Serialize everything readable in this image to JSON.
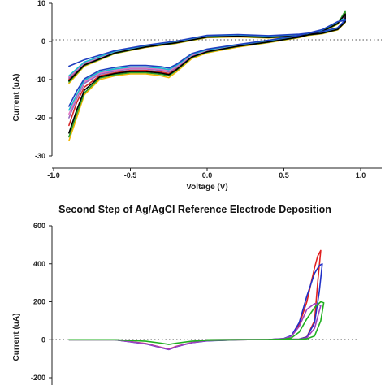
{
  "chart_data": [
    {
      "type": "line",
      "title": "",
      "xlabel": "Voltage (V)",
      "ylabel": "Current (uA)",
      "xlim": [
        -1.0,
        1.0
      ],
      "ylim": [
        -30,
        10
      ],
      "xticks": [
        "-1.0",
        "-0.5",
        "0.0",
        "0.5",
        "1.0"
      ],
      "yticks": [
        "10",
        "0",
        "-10",
        "-20",
        "-30"
      ],
      "zero_line": "dotted",
      "grid": false,
      "legend": "none",
      "series": [
        {
          "color": "#f2b705",
          "x": [
            -0.9,
            -0.85,
            -0.8,
            -0.7,
            -0.6,
            -0.5,
            -0.4,
            -0.3,
            -0.25,
            -0.2,
            -0.1,
            0.0,
            0.2,
            0.4,
            0.6,
            0.75,
            0.85,
            0.9,
            0.9,
            0.85,
            0.75,
            0.6,
            0.4,
            0.2,
            0.0,
            -0.2,
            -0.4,
            -0.6,
            -0.8,
            -0.9
          ],
          "y": [
            -26,
            -20,
            -14,
            -10,
            -9,
            -8.5,
            -8.5,
            -9,
            -9.5,
            -8,
            -4.5,
            -3,
            -1.5,
            -0.3,
            1,
            2.5,
            4.5,
            7.5,
            5,
            3,
            2,
            1.3,
            0.9,
            1.2,
            1,
            -0.5,
            -1.6,
            -3.2,
            -6.5,
            -11
          ]
        },
        {
          "color": "#2ca02c",
          "x": [
            -0.9,
            -0.85,
            -0.8,
            -0.7,
            -0.6,
            -0.5,
            -0.4,
            -0.3,
            -0.25,
            -0.2,
            -0.1,
            0.0,
            0.2,
            0.4,
            0.6,
            0.75,
            0.85,
            0.9,
            0.9,
            0.85,
            0.75,
            0.6,
            0.4,
            0.2,
            0.0,
            -0.2,
            -0.4,
            -0.6,
            -0.8,
            -0.9
          ],
          "y": [
            -25,
            -19,
            -13.5,
            -9.6,
            -8.7,
            -8.2,
            -8.2,
            -8.6,
            -9,
            -7.6,
            -4.2,
            -2.8,
            -1.3,
            -0.2,
            1.1,
            2.6,
            4.6,
            8,
            5.1,
            3.1,
            2.1,
            1.4,
            1,
            1.3,
            1.1,
            -0.4,
            -1.5,
            -3.1,
            -6.3,
            -10.6
          ]
        },
        {
          "color": "#d62728",
          "x": [
            -0.9,
            -0.85,
            -0.8,
            -0.7,
            -0.6,
            -0.5,
            -0.4,
            -0.3,
            -0.25,
            -0.2,
            -0.1,
            0.0,
            0.2,
            0.4,
            0.6,
            0.75,
            0.85,
            0.9,
            0.9,
            0.85,
            0.75,
            0.6,
            0.4,
            0.2,
            0.0,
            -0.2,
            -0.4,
            -0.6,
            -0.8,
            -0.9
          ],
          "y": [
            -22,
            -16,
            -12,
            -9,
            -8.2,
            -7.6,
            -7.6,
            -8,
            -8.4,
            -7.2,
            -4,
            -2.6,
            -1.2,
            -0.1,
            1.2,
            2.7,
            4.8,
            7,
            5.2,
            3.2,
            2.2,
            1.5,
            1.1,
            1.4,
            1.2,
            -0.3,
            -1.4,
            -2.9,
            -6,
            -10
          ]
        },
        {
          "color": "#9467bd",
          "x": [
            -0.9,
            -0.85,
            -0.8,
            -0.7,
            -0.6,
            -0.5,
            -0.4,
            -0.3,
            -0.25,
            -0.2,
            -0.1,
            0.0,
            0.2,
            0.4,
            0.6,
            0.75,
            0.85,
            0.9,
            0.9,
            0.85,
            0.75,
            0.6,
            0.4,
            0.2,
            0.0,
            -0.2,
            -0.4,
            -0.6,
            -0.8,
            -0.9
          ],
          "y": [
            -20,
            -15,
            -11,
            -8.6,
            -7.8,
            -7.2,
            -7.2,
            -7.6,
            -8,
            -6.9,
            -3.8,
            -2.4,
            -1.1,
            0,
            1.3,
            2.8,
            4.9,
            6.5,
            5.3,
            3.3,
            2.3,
            1.6,
            1.2,
            1.5,
            1.3,
            -0.2,
            -1.3,
            -2.8,
            -5.8,
            -9.6
          ]
        },
        {
          "color": "#e377c2",
          "x": [
            -0.9,
            -0.85,
            -0.8,
            -0.7,
            -0.6,
            -0.5,
            -0.4,
            -0.3,
            -0.25,
            -0.2,
            -0.1,
            0.0,
            0.2,
            0.4,
            0.6,
            0.75,
            0.85,
            0.9,
            0.9,
            0.85,
            0.75,
            0.6,
            0.4,
            0.2,
            0.0,
            -0.2,
            -0.4,
            -0.6,
            -0.8,
            -0.9
          ],
          "y": [
            -19,
            -14.5,
            -10.6,
            -8.3,
            -7.5,
            -7,
            -7,
            -7.3,
            -7.7,
            -6.6,
            -3.6,
            -2.3,
            -1,
            0.1,
            1.4,
            2.9,
            5,
            6.2,
            5.4,
            3.4,
            2.4,
            1.7,
            1.3,
            1.6,
            1.4,
            -0.1,
            -1.2,
            -2.7,
            -5.6,
            -9.3
          ]
        },
        {
          "color": "#17becf",
          "x": [
            -0.9,
            -0.85,
            -0.8,
            -0.7,
            -0.6,
            -0.5,
            -0.4,
            -0.3,
            -0.25,
            -0.2,
            -0.1,
            0.0,
            0.2,
            0.4,
            0.6,
            0.75,
            0.85,
            0.9,
            0.9,
            0.85,
            0.75,
            0.6,
            0.4,
            0.2,
            0.0,
            -0.2,
            -0.4,
            -0.6,
            -0.8,
            -0.9
          ],
          "y": [
            -18,
            -14,
            -10.2,
            -8,
            -7.2,
            -6.7,
            -6.7,
            -7,
            -7.4,
            -6.3,
            -3.4,
            -2.2,
            -0.9,
            0.2,
            1.5,
            3,
            5.1,
            6,
            5.5,
            3.5,
            2.5,
            1.8,
            1.4,
            1.7,
            1.5,
            0,
            -1.1,
            -2.6,
            -5.4,
            -9
          ]
        },
        {
          "color": "#000000",
          "x": [
            -0.9,
            -0.85,
            -0.8,
            -0.7,
            -0.6,
            -0.5,
            -0.4,
            -0.3,
            -0.25,
            -0.2,
            -0.1,
            0.0,
            0.2,
            0.4,
            0.6,
            0.75,
            0.85,
            0.9,
            0.9,
            0.85,
            0.75,
            0.6,
            0.4,
            0.2,
            0.0,
            -0.2,
            -0.4,
            -0.6,
            -0.8,
            -0.9
          ],
          "y": [
            -24,
            -18,
            -12.8,
            -9.3,
            -8.4,
            -7.9,
            -7.9,
            -8.3,
            -8.7,
            -7.4,
            -4.1,
            -2.7,
            -1.25,
            -0.15,
            1.15,
            2.65,
            4.7,
            7.2,
            5.15,
            3.15,
            2.15,
            1.45,
            1.05,
            1.35,
            1.15,
            -0.35,
            -1.45,
            -3,
            -6.2,
            -10.3
          ]
        },
        {
          "color": "#1f3fbf",
          "x": [
            -0.9,
            -0.85,
            -0.8,
            -0.7,
            -0.6,
            -0.5,
            -0.4,
            -0.3,
            -0.25,
            -0.2,
            -0.1,
            0.0,
            0.2,
            0.4,
            0.6,
            0.75,
            0.85,
            0.9,
            0.9,
            0.85,
            0.75,
            0.6,
            0.4,
            0.2,
            0.0,
            -0.2,
            -0.4,
            -0.6,
            -0.8,
            -0.9
          ],
          "y": [
            -17,
            -13,
            -9.8,
            -7.6,
            -6.8,
            -6.3,
            -6.3,
            -6.6,
            -7,
            -6,
            -3.2,
            -2,
            -0.8,
            0.3,
            1.6,
            3.1,
            5.2,
            5.5,
            5.6,
            3.6,
            2.6,
            1.9,
            1.5,
            1.8,
            1.6,
            0.1,
            -1,
            -2.4,
            -4.8,
            -6.5
          ]
        }
      ]
    },
    {
      "type": "line",
      "title": "Second Step of Ag/AgCl Reference Electrode Deposition",
      "xlabel": "",
      "ylabel": "Current (uA)",
      "xlim": [
        -1.0,
        1.0
      ],
      "ylim": [
        -200,
        600
      ],
      "yticks": [
        "600",
        "400",
        "200",
        "0",
        "-200"
      ],
      "zero_line": "dotted",
      "grid": false,
      "legend": "none",
      "series": [
        {
          "color": "#e02020",
          "x": [
            -0.9,
            -0.6,
            -0.4,
            -0.3,
            -0.25,
            -0.2,
            -0.1,
            0.0,
            0.2,
            0.4,
            0.5,
            0.55,
            0.6,
            0.65,
            0.7,
            0.72,
            0.74,
            0.72,
            0.7,
            0.65,
            0.6,
            0.4,
            0.0
          ],
          "y": [
            0,
            0,
            -20,
            -40,
            -50,
            -35,
            -15,
            -5,
            0,
            1,
            5,
            20,
            80,
            200,
            380,
            440,
            470,
            300,
            100,
            15,
            3,
            1,
            0
          ]
        },
        {
          "color": "#2030c8",
          "x": [
            -0.9,
            -0.6,
            -0.4,
            -0.3,
            -0.25,
            -0.2,
            -0.1,
            0.0,
            0.2,
            0.4,
            0.5,
            0.55,
            0.6,
            0.65,
            0.7,
            0.73,
            0.75,
            0.73,
            0.7,
            0.65,
            0.6,
            0.4,
            0.0
          ],
          "y": [
            0,
            0,
            -22,
            -42,
            -52,
            -37,
            -16,
            -6,
            0,
            1,
            6,
            22,
            90,
            230,
            350,
            390,
            400,
            250,
            90,
            14,
            3,
            1,
            0
          ]
        },
        {
          "color": "#a040c0",
          "x": [
            -0.9,
            -0.6,
            -0.4,
            -0.3,
            -0.25,
            -0.2,
            -0.1,
            0.0,
            0.2,
            0.4,
            0.5,
            0.55,
            0.6,
            0.65,
            0.7,
            0.72,
            0.74,
            0.72,
            0.7,
            0.65,
            0.6,
            0.4,
            0.0
          ],
          "y": [
            0,
            0,
            -21,
            -41,
            -51,
            -36,
            -15,
            -5,
            0,
            1,
            5,
            18,
            70,
            160,
            190,
            185,
            180,
            120,
            60,
            10,
            2,
            1,
            0
          ]
        },
        {
          "color": "#20b020",
          "x": [
            -0.9,
            -0.6,
            -0.4,
            -0.3,
            -0.25,
            -0.2,
            -0.1,
            0.0,
            0.2,
            0.4,
            0.5,
            0.55,
            0.6,
            0.65,
            0.7,
            0.74,
            0.76,
            0.74,
            0.7,
            0.65,
            0.6,
            0.4,
            0.0
          ],
          "y": [
            0,
            0,
            -8,
            -18,
            -25,
            -18,
            -8,
            -3,
            0,
            1,
            3,
            10,
            40,
            110,
            170,
            200,
            195,
            100,
            20,
            5,
            2,
            1,
            0
          ]
        }
      ]
    }
  ]
}
